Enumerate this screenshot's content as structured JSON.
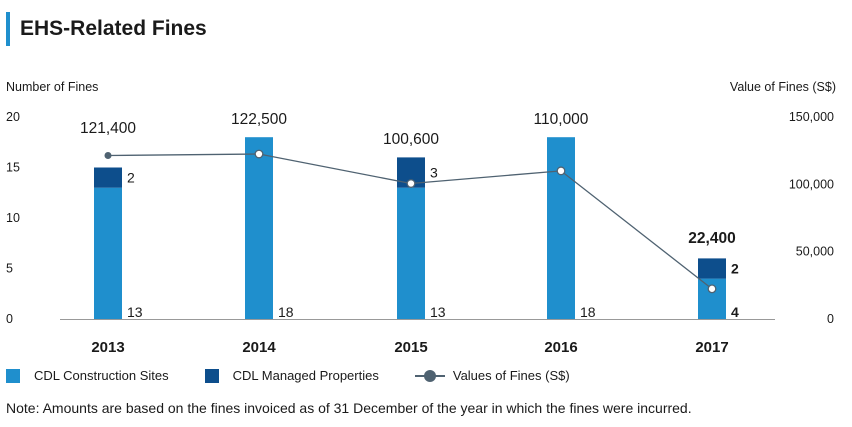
{
  "header": {
    "title": "EHS-Related Fines"
  },
  "colors": {
    "construction": "#1f8fcd",
    "managed": "#0d4e8c",
    "line": "#4f6271",
    "grid": "#999999"
  },
  "legend": {
    "construction_label": "CDL Construction Sites",
    "managed_label": "CDL Managed Properties",
    "line_label": "Values of Fines (S$)"
  },
  "note": "Note: Amounts are based on the fines invoiced as of 31 December of the year in which the fines were incurred.",
  "chart_data": {
    "type": "bar",
    "title": "EHS-Related Fines",
    "ylabel": "Number of Fines",
    "y2label": "Value of Fines (S$)",
    "categories": [
      "2013",
      "2014",
      "2015",
      "2016",
      "2017"
    ],
    "ylim": [
      0,
      20
    ],
    "yticks": [
      "0",
      "5",
      "10",
      "15",
      "20"
    ],
    "y2lim": [
      0,
      150000
    ],
    "y2ticks": [
      "0",
      "50,000",
      "100,000",
      "150,000"
    ],
    "stacked": true,
    "series": [
      {
        "name": "CDL Construction Sites",
        "values": [
          13,
          18,
          13,
          18,
          4
        ],
        "labels": [
          "13",
          "18",
          "13",
          "18",
          "4"
        ]
      },
      {
        "name": "CDL Managed Properties",
        "values": [
          2,
          0,
          3,
          0,
          2
        ],
        "labels": [
          "2",
          "",
          "3",
          "",
          "2"
        ]
      }
    ],
    "line": {
      "name": "Values of Fines (S$)",
      "values": [
        121400,
        122500,
        100600,
        110000,
        22400
      ],
      "labels": [
        "121,400",
        "122,500",
        "100,600",
        "110,000",
        "22,400"
      ]
    }
  }
}
